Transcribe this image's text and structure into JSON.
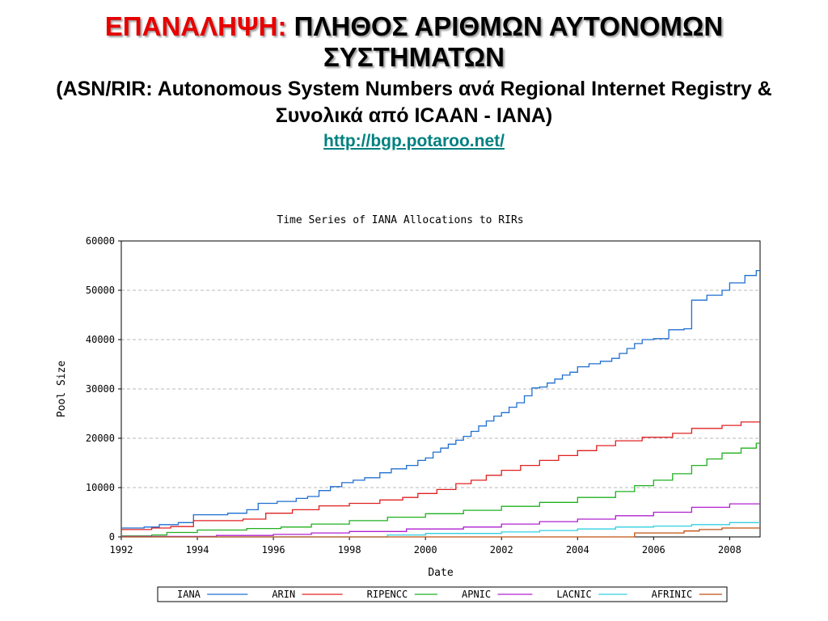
{
  "slide": {
    "title_prefix": "ΕΠΑΝΑΛΗΨΗ:",
    "title_main": "ΠΛΗΘΟΣ ΑΡΙΘΜΩΝ ΑΥΤΟΝΟΜΩΝ ΣΥΣΤΗΜΑΤΩΝ",
    "subtitle": "(ASN/RIR: Autonomous System Numbers ανά Regional Internet Registry & Συνολικά από ICAAN - IANA)",
    "link": "http://bgp.potaroo.net/",
    "colors": {
      "title_accent": "#e60000",
      "link": "#008080"
    }
  },
  "chart_data": {
    "type": "line",
    "title": "Time Series of IANA Allocations to RIRs",
    "xlabel": "Date",
    "ylabel": "Pool Size",
    "xlim": [
      1992,
      2008.8
    ],
    "ylim": [
      0,
      60000
    ],
    "x_ticks": [
      1992,
      1994,
      1996,
      1998,
      2000,
      2002,
      2004,
      2006,
      2008
    ],
    "y_ticks": [
      0,
      10000,
      20000,
      30000,
      40000,
      50000,
      60000
    ],
    "grid": true,
    "legend_position": "bottom",
    "series": [
      {
        "name": "IANA",
        "color": "#1e6fd0",
        "step": true,
        "x": [
          1992,
          1992.6,
          1993,
          1993.5,
          1993.9,
          1994.8,
          1995.3,
          1995.6,
          1996.1,
          1996.6,
          1996.9,
          1997.2,
          1997.5,
          1997.8,
          1998.1,
          1998.4,
          1998.8,
          1999.1,
          1999.5,
          1999.8,
          2000.0,
          2000.2,
          2000.4,
          2000.6,
          2000.8,
          2001.0,
          2001.2,
          2001.4,
          2001.6,
          2001.8,
          2002.0,
          2002.2,
          2002.4,
          2002.6,
          2002.8,
          2003.0,
          2003.2,
          2003.4,
          2003.6,
          2003.8,
          2004.0,
          2004.3,
          2004.6,
          2004.9,
          2005.1,
          2005.3,
          2005.5,
          2005.7,
          2006.0,
          2006.4,
          2006.8,
          2007.0,
          2007.4,
          2007.8,
          2008.0,
          2008.4,
          2008.7
        ],
        "y": [
          1800,
          2000,
          2500,
          2900,
          4500,
          4800,
          5500,
          6800,
          7200,
          7800,
          8200,
          9400,
          10200,
          11000,
          11500,
          12000,
          13000,
          13800,
          14500,
          15500,
          16000,
          17200,
          18000,
          18800,
          19600,
          20400,
          21400,
          22500,
          23500,
          24500,
          25200,
          26300,
          27200,
          28600,
          30200,
          30400,
          31200,
          32000,
          32800,
          33400,
          34500,
          35100,
          35600,
          36200,
          37200,
          38200,
          39200,
          40000,
          40200,
          42000,
          42200,
          48000,
          49000,
          50000,
          51500,
          53000,
          54000
        ]
      },
      {
        "name": "ARIN",
        "color": "#e02020",
        "step": true,
        "x": [
          1992,
          1992.8,
          1993.3,
          1993.9,
          1995.2,
          1995.8,
          1996.5,
          1997.2,
          1998.0,
          1998.8,
          1999.4,
          1999.8,
          2000.3,
          2000.8,
          2001.2,
          2001.6,
          2002.0,
          2002.5,
          2003.0,
          2003.5,
          2004.0,
          2004.5,
          2005.0,
          2005.7,
          2006.5,
          2007.0,
          2007.8,
          2008.3
        ],
        "y": [
          1500,
          1800,
          2100,
          3300,
          3600,
          4800,
          5500,
          6300,
          6800,
          7500,
          8000,
          8800,
          9600,
          10800,
          11500,
          12500,
          13500,
          14500,
          15500,
          16500,
          17500,
          18500,
          19500,
          20200,
          21000,
          22000,
          22600,
          23300
        ]
      },
      {
        "name": "RIPENCC",
        "color": "#20b020",
        "step": true,
        "x": [
          1992,
          1992.8,
          1993.2,
          1994,
          1995.3,
          1996.2,
          1997,
          1998,
          1999,
          2000,
          2001,
          2002,
          2003,
          2004,
          2005,
          2005.5,
          2006,
          2006.5,
          2007,
          2007.4,
          2007.8,
          2008.3,
          2008.7
        ],
        "y": [
          200,
          400,
          900,
          1400,
          1700,
          2000,
          2600,
          3300,
          4000,
          4700,
          5400,
          6200,
          7000,
          8000,
          9200,
          10400,
          11500,
          12800,
          14500,
          15800,
          17000,
          18000,
          19000
        ]
      },
      {
        "name": "APNIC",
        "color": "#b020d0",
        "step": true,
        "x": [
          1992,
          1994.5,
          1996,
          1997,
          1998,
          1999.5,
          2001,
          2002,
          2003,
          2004,
          2005,
          2006,
          2007,
          2008
        ],
        "y": [
          100,
          300,
          500,
          800,
          1100,
          1600,
          2000,
          2600,
          3100,
          3600,
          4300,
          5000,
          6000,
          6700
        ]
      },
      {
        "name": "LACNIC",
        "color": "#30d0e0",
        "step": true,
        "x": [
          1992,
          1999,
          2000,
          2002,
          2003,
          2004,
          2005,
          2006,
          2007,
          2008
        ],
        "y": [
          0,
          400,
          700,
          1000,
          1300,
          1600,
          2000,
          2200,
          2500,
          2900
        ]
      },
      {
        "name": "AFRINIC",
        "color": "#c05010",
        "step": true,
        "x": [
          1992,
          2005.2,
          2005.5,
          2006.8,
          2007.2,
          2007.8
        ],
        "y": [
          0,
          0,
          800,
          1200,
          1500,
          1800
        ]
      }
    ]
  }
}
